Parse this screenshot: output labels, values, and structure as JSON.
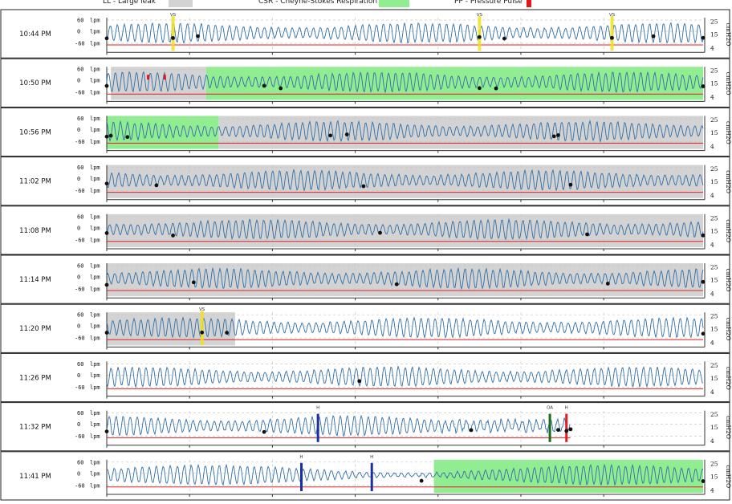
{
  "legend": [
    {
      "key": "ll",
      "label": "LL - Large leak",
      "color": "#d3d3d3"
    },
    {
      "key": "csr",
      "label": "CSR - Cheyne-Stokes Respiration",
      "color": "#90ee90"
    },
    {
      "key": "pp",
      "label": "PP - Pressure Pulse",
      "color": "#e8141c"
    }
  ],
  "chart_data": {
    "type": "line",
    "description_units": {
      "x": "minutes from row start (0-6)",
      "flow": "lpm",
      "pressure": "cmH2O"
    },
    "left_axis": {
      "ticks": [
        "60",
        "0",
        "-60"
      ],
      "unit": "lpm",
      "ylim": [
        -60,
        60
      ]
    },
    "right_axis": {
      "ticks": [
        "25",
        "15",
        "4"
      ],
      "unit": "cmH2O",
      "ylim": [
        4,
        25
      ]
    },
    "series_colors": {
      "flow": "#2f6fa8",
      "pressure": "#e02020"
    },
    "rows": [
      {
        "time": "10:44 PM",
        "ll": [],
        "csr": [],
        "pp": [],
        "events": [
          {
            "x": 0.8,
            "code": "VS",
            "color": "#f0e020",
            "type": "vs"
          },
          {
            "x": 4.5,
            "code": "VS",
            "color": "#f0e020",
            "type": "vs"
          },
          {
            "x": 6.1,
            "code": "VS",
            "color": "#f0e020",
            "type": "vs"
          }
        ],
        "dots": [
          0,
          0.8,
          1.1,
          4.5,
          4.8,
          6.1,
          6.6,
          7.2
        ],
        "end": 7.2,
        "pressure": 8
      },
      {
        "time": "10:50 PM",
        "ll": [
          [
            0.05,
            1.2
          ]
        ],
        "csr": [
          [
            1.2,
            7.2
          ]
        ],
        "pp": [
          0.5,
          0.7
        ],
        "events": [],
        "dots": [
          0,
          1.9,
          2.1,
          4.5,
          4.7,
          7.2
        ],
        "end": 7.2,
        "pressure": 9
      },
      {
        "time": "10:56 PM",
        "ll": [
          [
            1.35,
            7.2
          ]
        ],
        "csr": [
          [
            0,
            1.35
          ]
        ],
        "pp": [],
        "events": [],
        "dots": [
          0,
          0.05,
          0.25,
          2.7,
          2.9,
          5.4,
          5.45
        ],
        "end": 7.2,
        "pressure": 9
      },
      {
        "time": "11:02 PM",
        "ll": [
          [
            0,
            7.2
          ]
        ],
        "csr": [],
        "pp": [],
        "events": [],
        "dots": [
          0,
          0.6,
          3.1,
          5.6
        ],
        "end": 7.2,
        "pressure": 8
      },
      {
        "time": "11:08 PM",
        "ll": [
          [
            0,
            7.2
          ]
        ],
        "csr": [],
        "pp": [],
        "events": [],
        "dots": [
          0,
          0.8,
          3.3,
          5.8,
          7.2
        ],
        "end": 7.2,
        "pressure": 8
      },
      {
        "time": "11:14 PM",
        "ll": [
          [
            0,
            7.2
          ]
        ],
        "csr": [],
        "pp": [],
        "events": [],
        "dots": [
          0,
          1.05,
          3.5,
          6.05,
          7.2
        ],
        "end": 7.2,
        "pressure": 8
      },
      {
        "time": "11:20 PM",
        "ll": [
          [
            0,
            1.55
          ]
        ],
        "csr": [],
        "pp": [],
        "events": [
          {
            "x": 1.15,
            "code": "VS",
            "color": "#f0e020",
            "type": "vs"
          }
        ],
        "dots": [
          0,
          1.15,
          1.45,
          7.2
        ],
        "end": 7.2,
        "pressure": 8
      },
      {
        "time": "11:26 PM",
        "ll": [],
        "csr": [],
        "pp": [],
        "events": [],
        "dots": [
          3.05
        ],
        "end": 7.2,
        "pressure": 8
      },
      {
        "time": "11:32 PM",
        "ll": [],
        "csr": [],
        "pp": [],
        "events": [
          {
            "x": 2.55,
            "code": "H",
            "color": "#1a2fa0",
            "type": "bar"
          },
          {
            "x": 5.35,
            "code": "OA",
            "color": "#1a6a1a",
            "type": "bar"
          },
          {
            "x": 5.55,
            "code": "H",
            "color": "#e02020",
            "type": "bar"
          }
        ],
        "dots": [
          0,
          1.9,
          4.4,
          5.45,
          5.55,
          5.6
        ],
        "end": 5.6,
        "pressure": 8
      },
      {
        "time": "11:41 PM",
        "ll": [],
        "csr": [
          [
            3.95,
            7.2
          ]
        ],
        "pp": [],
        "events": [
          {
            "x": 2.35,
            "code": "H",
            "color": "#1a2fa0",
            "type": "bar"
          },
          {
            "x": 3.2,
            "code": "H",
            "color": "#1a2fa0",
            "type": "bar"
          }
        ],
        "dots": [
          3.8,
          7.2
        ],
        "end": 7.2,
        "pressure": 8
      }
    ]
  }
}
